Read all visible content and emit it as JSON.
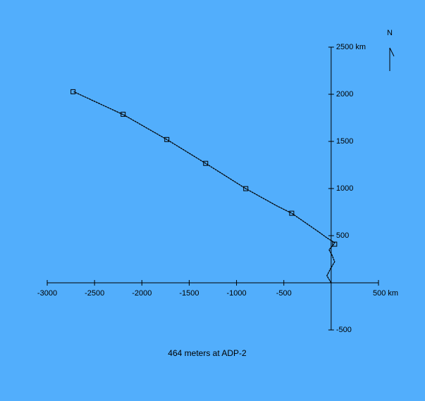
{
  "chart_data": {
    "type": "line",
    "title": "464 meters at ADP-2",
    "north_label": "N",
    "xlim": [
      -3000,
      500
    ],
    "ylim": [
      -500,
      2500
    ],
    "xticks": [
      -3000,
      -2500,
      -2000,
      -1500,
      -1000,
      -500,
      {
        "value": 500,
        "label": "500 km"
      }
    ],
    "yticks": [
      -500,
      500,
      1000,
      1500,
      2000,
      {
        "value": 2500,
        "label": "2500 km"
      }
    ],
    "color": "#000000",
    "series": [
      {
        "style": "line",
        "x": [
          0,
          -45,
          -7,
          37,
          7,
          -22,
          22,
          37,
          -45,
          -127,
          -417,
          -566,
          -902,
          -1326,
          -1736,
          -2190,
          -2720
        ],
        "values": [
          0,
          75,
          149,
          224,
          298,
          350,
          402,
          425,
          477,
          537,
          738,
          812,
          999,
          1267,
          1520,
          1781,
          2027
        ]
      },
      {
        "style": "square",
        "x": [
          37,
          -417,
          -902,
          -1326,
          -1736,
          -2198,
          -2727
        ],
        "values": [
          410,
          738,
          999,
          1267,
          1520,
          1788,
          2027
        ]
      }
    ]
  }
}
